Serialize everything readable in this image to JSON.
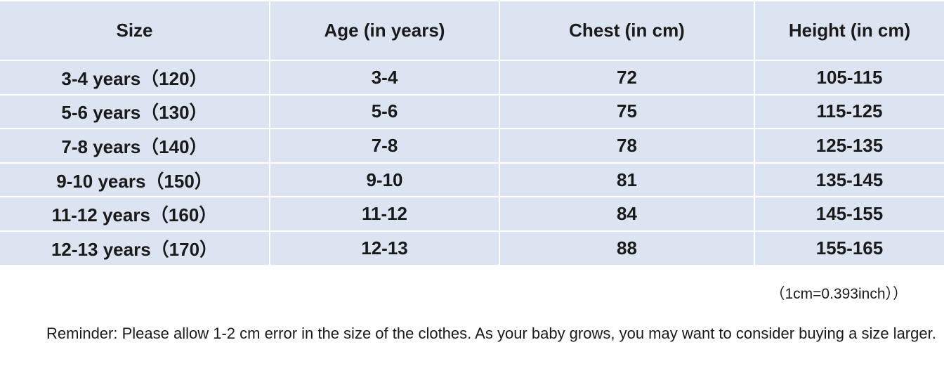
{
  "table": {
    "headers": [
      "Size",
      "Age (in years)",
      "Chest (in cm)",
      "Height (in cm)"
    ],
    "rows": [
      [
        "3-4 years（120）",
        "3-4",
        "72",
        "105-115"
      ],
      [
        "5-6 years（130）",
        "5-6",
        "75",
        "115-125"
      ],
      [
        "7-8 years（140）",
        "7-8",
        "78",
        "125-135"
      ],
      [
        "9-10 years（150）",
        "9-10",
        "81",
        "135-145"
      ],
      [
        "11-12 years（160）",
        "11-12",
        "84",
        "145-155"
      ],
      [
        "12-13 years（170）",
        "12-13",
        "88",
        "155-165"
      ]
    ]
  },
  "note": "（1cm=0.393inch））",
  "reminder": "Reminder: Please allow 1-2 cm error in the size of the clothes. As your baby grows, you may want to consider buying a size larger."
}
